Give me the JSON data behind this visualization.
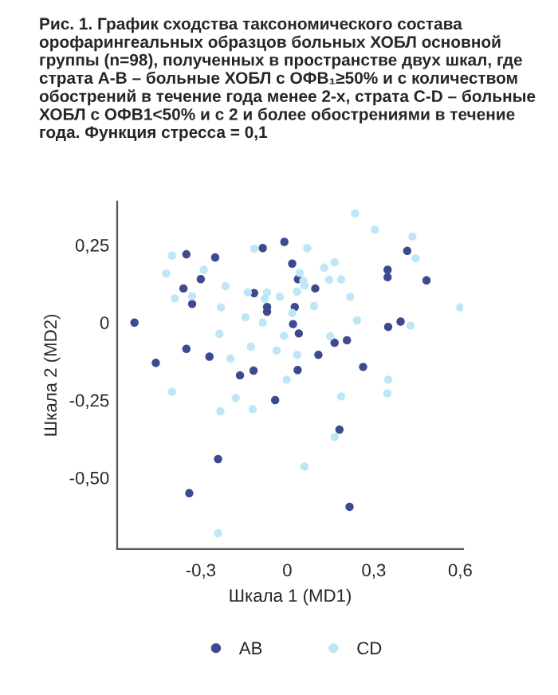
{
  "chart_data": {
    "type": "scatter",
    "title": "Рис. 1. График сходства таксономического состава орофарингеальных образцов больных ХОБЛ основной группы (n=98), полученных в пространстве двух шкал, где страта А-В – больные ХОБЛ с ОФВ₁≥50% и с количеством обострений в течение года менее 2-х, страта С-D – больные ХОБЛ с ОФВ1<50% и с 2 и более обострениями в течение года. Функция стресса = 0,1",
    "xlabel": "Шкала 1 (MD1)",
    "ylabel": "Шкала 2 (MD2)",
    "xlim": [
      -0.59,
      0.61
    ],
    "ylim": [
      -0.73,
      0.39
    ],
    "xticks": [
      {
        "value": -0.3,
        "label": "-0,3"
      },
      0,
      {
        "value": 0.3,
        "label": "0,3"
      },
      {
        "value": 0.6,
        "label": "0,6"
      }
    ],
    "yticks": [
      {
        "value": 0.25,
        "label": "0,25"
      },
      0,
      {
        "value": -0.25,
        "label": "-0,25"
      },
      {
        "value": -0.5,
        "label": "-0,50"
      }
    ],
    "grid": false,
    "legend": "bottom",
    "marker": "circle",
    "series": [
      {
        "name": "AB",
        "color": "#3d4a8f",
        "x": [
          -0.53,
          -0.35,
          -0.25,
          -0.01,
          -0.085,
          0.017,
          0.037,
          0.097,
          -0.3,
          -0.36,
          -0.33,
          -0.115,
          -0.07,
          -0.07,
          0.026,
          0.02,
          0.04,
          -0.35,
          -0.27,
          -0.456,
          -0.164,
          -0.117,
          0.036,
          0.108,
          -0.042,
          0.416,
          0.348,
          0.348,
          0.483,
          0.393,
          0.35,
          0.207,
          0.164,
          0.263,
          0.181,
          -0.24,
          -0.34,
          0.216
        ],
        "values": [
          0,
          0.22,
          0.21,
          0.26,
          0.24,
          0.19,
          0.14,
          0.11,
          0.14,
          0.11,
          0.06,
          0.095,
          0.05,
          0.035,
          0.05,
          -0.005,
          -0.035,
          -0.085,
          -0.11,
          -0.13,
          -0.17,
          -0.155,
          -0.153,
          -0.104,
          -0.25,
          0.231,
          0.17,
          0.146,
          0.136,
          0.003,
          -0.014,
          -0.057,
          -0.065,
          -0.143,
          -0.345,
          -0.44,
          -0.55,
          -0.594
        ]
      },
      {
        "name": "CD",
        "color": "#bfe6f7",
        "x": [
          -0.4,
          -0.42,
          -0.39,
          -0.29,
          -0.33,
          -0.214,
          -0.23,
          -0.115,
          0.069,
          0.043,
          0.056,
          -0.137,
          -0.07,
          -0.026,
          -0.078,
          0.034,
          0.017,
          -0.145,
          -0.085,
          0.093,
          -0.235,
          -0.011,
          -0.126,
          -0.037,
          0.034,
          -0.197,
          -0.002,
          -0.4,
          -0.179,
          -0.232,
          -0.12,
          0.235,
          0.304,
          0.434,
          0.445,
          0.164,
          0.128,
          0.145,
          0.187,
          0.06,
          0.218,
          0.242,
          0.6,
          0.427,
          0.149,
          0.35,
          0.347,
          0.187,
          0.06,
          -0.24,
          0.164
        ],
        "values": [
          0.216,
          0.158,
          0.078,
          0.17,
          0.085,
          0.117,
          0.049,
          0.238,
          0.24,
          0.16,
          0.134,
          0.097,
          0.097,
          0.083,
          0.077,
          0.1,
          0.031,
          0.017,
          0,
          0.053,
          -0.036,
          -0.043,
          -0.078,
          -0.09,
          -0.104,
          -0.116,
          -0.184,
          -0.223,
          -0.243,
          -0.286,
          -0.279,
          0.352,
          0.3,
          0.277,
          0.207,
          0.194,
          0.177,
          0.138,
          0.139,
          0.119,
          0.083,
          0.007,
          0.049,
          -0.01,
          -0.044,
          -0.184,
          -0.228,
          -0.238,
          -0.464,
          -0.679,
          -0.369
        ]
      }
    ]
  }
}
